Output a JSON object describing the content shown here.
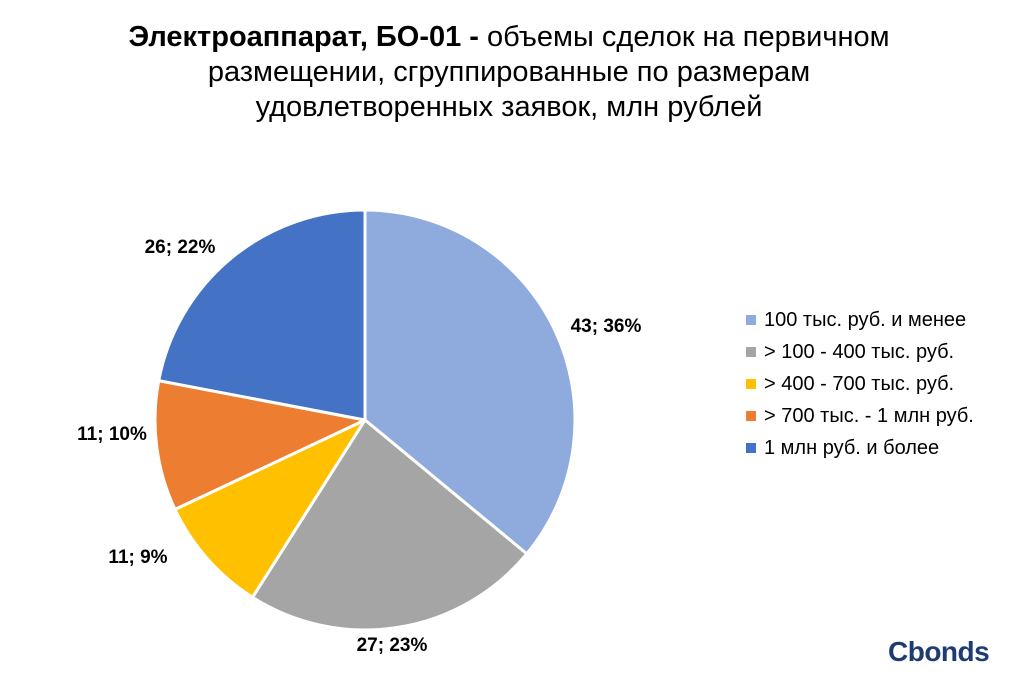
{
  "title": {
    "bold_part": "Электроаппарат, БО-01 -",
    "line1_rest": " объемы сделок на первичном",
    "line2": "размещении, сгруппированные по размерам",
    "line3": "удовлетворенных заявок, млн рублей"
  },
  "chart_data": {
    "type": "pie",
    "title": "Электроаппарат, БО-01 - объемы сделок на первичном размещении, сгруппированные по размерам удовлетворенных заявок, млн рублей",
    "legend_position": "right",
    "slices": [
      {
        "name": "100 тыс. руб. и менее",
        "value": 43,
        "percent": 36,
        "label": "43; 36%",
        "color": "#8FAADC"
      },
      {
        "name": "> 100 - 400 тыс. руб.",
        "value": 27,
        "percent": 23,
        "label": "27; 23%",
        "color": "#A5A5A5"
      },
      {
        "name": "> 400 - 700 тыс. руб.",
        "value": 11,
        "percent": 9,
        "label": "11; 9%",
        "color": "#FFC000"
      },
      {
        "name": "> 700 тыс. - 1 млн руб.",
        "value": 11,
        "percent": 10,
        "label": "11; 10%",
        "color": "#ED7D31"
      },
      {
        "name": "1 млн руб. и более",
        "value": 26,
        "percent": 22,
        "label": "26; 22%",
        "color": "#4472C4"
      }
    ]
  },
  "logo": {
    "text": "Cbonds"
  }
}
